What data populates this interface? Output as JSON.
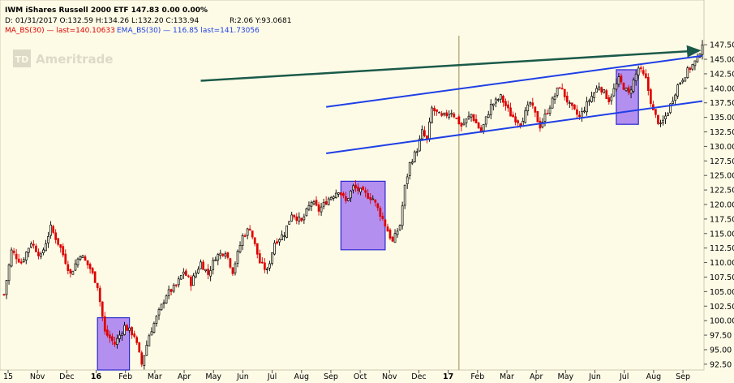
{
  "header": {
    "line1": "IWM iShares Russell 2000 ETF   147.83  0.00  0.00%",
    "line2_left": "D: 01/31/2017 O:132.59 H:134.26 L:132.20 C:133.94",
    "line2_right": "R:2.06 Y:93.0681",
    "line3_ma": "MA_BS(30) — last=140.10633",
    "line3_ema": "EMA_BS(30) — 116.85 last=141.73056"
  },
  "watermark": "Ameritrade",
  "watermark_logo": "TD",
  "colors": {
    "background": "#fdfbe6",
    "candle_up": "#000000",
    "candle_down": "#dd0000",
    "channel": "#1f3fe6",
    "trend_arrow": "#1b5a4a",
    "highlight_fill": "#9a6bf2",
    "highlight_stroke": "#2a2ad0",
    "vline": "#9a8a50",
    "ma_color": "#dd0000",
    "ema_color": "#1f3fe6"
  },
  "chart_data": {
    "type": "candlestick",
    "title": "IWM iShares Russell 2000 ETF",
    "x_ticks": [
      "15",
      "Nov",
      "Dec",
      "16",
      "Feb",
      "Mar",
      "Apr",
      "May",
      "Jun",
      "Jul",
      "Aug",
      "Sep",
      "Oct",
      "Nov",
      "Dec",
      "17",
      "Feb",
      "Mar",
      "Apr",
      "May",
      "Jun",
      "Jul",
      "Aug",
      "Sep"
    ],
    "y_ticks": [
      "92.50",
      "95.00",
      "97.50",
      "100.00",
      "102.50",
      "105.00",
      "107.50",
      "110.00",
      "112.50",
      "115.00",
      "117.50",
      "120.00",
      "122.50",
      "125.00",
      "127.50",
      "130.00",
      "132.50",
      "135.00",
      "137.50",
      "140.00",
      "142.50",
      "145.00",
      "147.50"
    ],
    "ylim": [
      91.5,
      148.5
    ],
    "date_range": [
      "2015-10",
      "2017-09"
    ],
    "last_price": 147.83,
    "price_path": [
      [
        0,
        104.5
      ],
      [
        3,
        112.0
      ],
      [
        7,
        110.0
      ],
      [
        11,
        113.5
      ],
      [
        15,
        111.0
      ],
      [
        19,
        116.0
      ],
      [
        23,
        112.5
      ],
      [
        27,
        108.0
      ],
      [
        31,
        111.5
      ],
      [
        35,
        109.0
      ],
      [
        38,
        106.0
      ],
      [
        41,
        98.0
      ],
      [
        45,
        96.0
      ],
      [
        49,
        99.0
      ],
      [
        53,
        97.5
      ],
      [
        56,
        92.5
      ],
      [
        59,
        97.5
      ],
      [
        63,
        101.5
      ],
      [
        66,
        104.5
      ],
      [
        70,
        106.0
      ],
      [
        73,
        108.5
      ],
      [
        76,
        106.5
      ],
      [
        80,
        110.0
      ],
      [
        83,
        108.0
      ],
      [
        86,
        111.0
      ],
      [
        90,
        112.0
      ],
      [
        93,
        108.5
      ],
      [
        97,
        114.5
      ],
      [
        100,
        116.0
      ],
      [
        104,
        110.0
      ],
      [
        107,
        108.5
      ],
      [
        110,
        113.5
      ],
      [
        114,
        115.0
      ],
      [
        117,
        118.5
      ],
      [
        121,
        117.0
      ],
      [
        125,
        120.5
      ],
      [
        128,
        119.0
      ],
      [
        132,
        121.0
      ],
      [
        136,
        122.5
      ],
      [
        139,
        120.5
      ],
      [
        142,
        123.0
      ],
      [
        146,
        122.0
      ],
      [
        150,
        121.0
      ],
      [
        154,
        117.5
      ],
      [
        158,
        113.5
      ],
      [
        161,
        116.5
      ],
      [
        163,
        123.0
      ],
      [
        165,
        127.0
      ],
      [
        168,
        129.5
      ],
      [
        170,
        132.5
      ],
      [
        172,
        131.0
      ],
      [
        174,
        136.5
      ],
      [
        178,
        135.0
      ],
      [
        182,
        136.0
      ],
      [
        186,
        133.5
      ],
      [
        190,
        135.5
      ],
      [
        194,
        132.5
      ],
      [
        198,
        137.0
      ],
      [
        202,
        138.5
      ],
      [
        206,
        135.5
      ],
      [
        210,
        134.0
      ],
      [
        214,
        137.5
      ],
      [
        218,
        133.5
      ],
      [
        222,
        137.0
      ],
      [
        226,
        140.5
      ],
      [
        230,
        137.0
      ],
      [
        234,
        135.0
      ],
      [
        238,
        138.0
      ],
      [
        242,
        140.5
      ],
      [
        246,
        138.0
      ],
      [
        250,
        141.5
      ],
      [
        254,
        139.0
      ],
      [
        258,
        143.5
      ],
      [
        261,
        141.5
      ],
      [
        264,
        136.0
      ],
      [
        267,
        133.5
      ],
      [
        270,
        136.0
      ],
      [
        274,
        140.5
      ],
      [
        278,
        143.0
      ],
      [
        282,
        145.0
      ],
      [
        284,
        147.83
      ]
    ],
    "bull_channel_upper": [
      [
        131,
        136.8
      ],
      [
        284,
        145.6
      ]
    ],
    "bull_channel_lower": [
      [
        131,
        128.8
      ],
      [
        284,
        137.8
      ]
    ],
    "trend_arrow": [
      [
        80,
        141.3
      ],
      [
        284,
        146.5
      ]
    ],
    "highlight_boxes": [
      {
        "from": 38,
        "to": 51,
        "low": 91.5,
        "high": 100.5
      },
      {
        "from": 137,
        "to": 155,
        "low": 112.2,
        "high": 124.0
      },
      {
        "from": 249,
        "to": 258,
        "low": 133.8,
        "high": 143.2
      }
    ],
    "vertical_marker": 185
  }
}
